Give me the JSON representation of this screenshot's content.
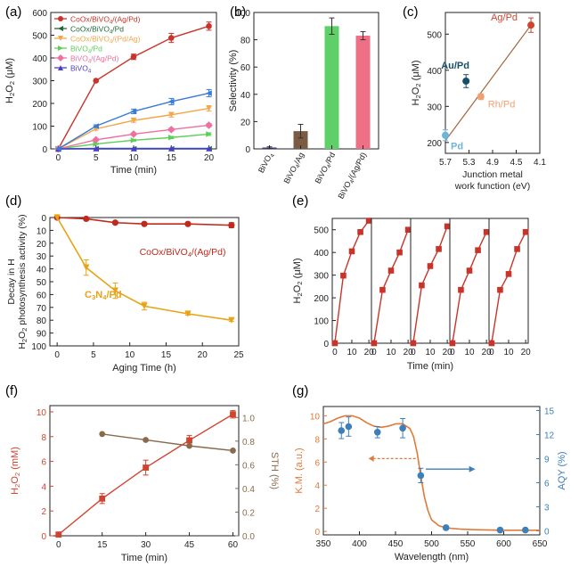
{
  "panel_labels": [
    "(a)",
    "(b)",
    "(c)",
    "(d)",
    "(e)",
    "(f)",
    "(g)"
  ],
  "chart_data": [
    {
      "id": "a",
      "type": "line",
      "ylabel": "H2O2 (μM)",
      "xlabel": "Time (min)",
      "xlim": [
        -1,
        21
      ],
      "ylim": [
        0,
        600
      ],
      "xticks": [
        0,
        5,
        10,
        15,
        20
      ],
      "yticks": [
        0,
        100,
        200,
        300,
        400,
        500,
        600
      ],
      "x": [
        0,
        5,
        10,
        15,
        20
      ],
      "legend": "top-left",
      "series": [
        {
          "name": "CoOx/BiVO4/(Ag/Pd)",
          "color": "#c8342a",
          "marker": "circle",
          "values": [
            0,
            300,
            405,
            488,
            540
          ],
          "errors": [
            0,
            0,
            12,
            20,
            18
          ]
        },
        {
          "name": "CoOx/BiVO4/Pd",
          "color": "#1f6a3a",
          "marker": "tri-left",
          "values": [
            0,
            0,
            0,
            0,
            0
          ],
          "errors": [
            0,
            0,
            0,
            0,
            0
          ]
        },
        {
          "name": "CoOx/BiVO4/(Pd/Ag)",
          "color": "#f3a64b",
          "marker": "tri-down",
          "values": [
            0,
            88,
            125,
            150,
            178
          ],
          "errors": [
            0,
            6,
            8,
            10,
            12
          ]
        },
        {
          "name": "BiVO4/Pd",
          "color": "#5ccf58",
          "marker": "tri-right",
          "values": [
            0,
            22,
            38,
            50,
            65
          ],
          "errors": [
            0,
            3,
            4,
            5,
            6
          ]
        },
        {
          "name": "BiVO4/(Ag/Pd)",
          "color": "#ef6fa0",
          "marker": "diamond",
          "values": [
            0,
            40,
            65,
            85,
            104
          ],
          "errors": [
            0,
            4,
            5,
            6,
            7
          ]
        },
        {
          "name": "BiVO4",
          "color": "#4b3bd1",
          "marker": "tri-up",
          "values": [
            0,
            2,
            2,
            2,
            2
          ],
          "errors": [
            0,
            0,
            0,
            0,
            0
          ]
        },
        {
          "name": "",
          "color": "#3a7bd5",
          "marker": "tri-left",
          "values": [
            0,
            100,
            165,
            208,
            245
          ],
          "errors": [
            0,
            6,
            10,
            14,
            16
          ]
        }
      ]
    },
    {
      "id": "b",
      "type": "bar",
      "ylabel": "Selectivity (%)",
      "ylim": [
        0,
        100
      ],
      "yticks": [
        0,
        20,
        40,
        60,
        80,
        100
      ],
      "categories": [
        "BiVO4",
        "BiVO4/Ag",
        "BiVO4/Pd",
        "BiVO4/(Ag/Pd)"
      ],
      "values": [
        1,
        13,
        90,
        83
      ],
      "errors": [
        0.5,
        5,
        6,
        3
      ],
      "colors": [
        "#3b3a8f",
        "#7b5b43",
        "#5fcf68",
        "#ef6f85"
      ]
    },
    {
      "id": "c",
      "type": "scatter",
      "ylabel": "H2O2 (μM)",
      "xlabel": "Junction metal work function (eV)",
      "xlim": [
        5.7,
        4.1
      ],
      "ylim": [
        170,
        560
      ],
      "xticks": [
        5.7,
        5.3,
        4.9,
        4.5,
        4.1
      ],
      "yticks": [
        200,
        300,
        400,
        500
      ],
      "fit_line": {
        "x": [
          5.7,
          4.25
        ],
        "y": [
          205,
          525
        ],
        "color": "#a0643c"
      },
      "points": [
        {
          "label": "Ag/Pd",
          "x": 4.25,
          "y": 525,
          "err": 20,
          "color": "#d0442f"
        },
        {
          "label": "Au/Pd",
          "x": 5.35,
          "y": 370,
          "err": 18,
          "color": "#174e6a"
        },
        {
          "label": "Rh/Pd",
          "x": 5.1,
          "y": 327,
          "err": 8,
          "color": "#f0a070"
        },
        {
          "label": "Pd",
          "x": 5.7,
          "y": 220,
          "err": 15,
          "color": "#6cb4d8"
        }
      ]
    },
    {
      "id": "d",
      "type": "line",
      "ylabel": "Decay in H2O2 photosynthesis activity (%)",
      "xlabel": "Aging Time (h)",
      "xlim": [
        -1,
        25
      ],
      "ylim": [
        100,
        0
      ],
      "xticks": [
        0,
        5,
        10,
        15,
        20,
        25
      ],
      "yticks": [
        0,
        10,
        20,
        30,
        40,
        50,
        60,
        70,
        80,
        90,
        100
      ],
      "series": [
        {
          "name": "CoOx/BiVO4/(Ag/Pd)",
          "color": "#c02a1d",
          "marker": "circle",
          "x": [
            0,
            4,
            8,
            12,
            18,
            24
          ],
          "values": [
            0,
            1,
            4,
            5,
            5,
            6
          ],
          "errors": [
            0,
            1,
            1,
            1,
            1,
            2
          ]
        },
        {
          "name": "C3N4/Pd",
          "color": "#e8a317",
          "marker": "triangle-down",
          "x": [
            0,
            4,
            8,
            12,
            18,
            24
          ],
          "values": [
            0,
            39,
            57,
            69,
            75,
            80
          ],
          "errors": [
            0,
            6,
            6,
            3,
            1,
            1
          ]
        }
      ]
    },
    {
      "id": "e",
      "type": "line",
      "ylabel": "H2O2 (μM)",
      "xlabel": "Time (min)",
      "ylim": [
        0,
        550
      ],
      "yticks": [
        0,
        100,
        200,
        300,
        400,
        500
      ],
      "xticks": [
        0,
        10,
        20
      ],
      "cycles": [
        {
          "x": [
            0,
            5,
            10,
            15,
            20
          ],
          "values": [
            0,
            298,
            405,
            490,
            540
          ]
        },
        {
          "x": [
            0,
            5,
            10,
            15,
            20
          ],
          "values": [
            0,
            235,
            320,
            400,
            500
          ]
        },
        {
          "x": [
            0,
            5,
            10,
            15,
            20
          ],
          "values": [
            0,
            255,
            340,
            415,
            515
          ]
        },
        {
          "x": [
            0,
            5,
            10,
            15,
            20
          ],
          "values": [
            0,
            235,
            320,
            410,
            490
          ]
        },
        {
          "x": [
            0,
            5,
            10,
            15,
            20
          ],
          "values": [
            0,
            235,
            305,
            415,
            490
          ]
        }
      ],
      "color": "#c8342a"
    },
    {
      "id": "f",
      "type": "line",
      "ylabel": "H2O2 (mM)",
      "y2label": "STH (%)",
      "xlabel": "Time (min)",
      "xlim": [
        -3,
        62
      ],
      "ylim": [
        0,
        10.5
      ],
      "y2lim": [
        0,
        1.1
      ],
      "xticks": [
        0,
        15,
        30,
        45,
        60
      ],
      "yticks": [
        0,
        2,
        4,
        6,
        8,
        10
      ],
      "y2ticks": [
        0.0,
        0.2,
        0.4,
        0.6,
        0.8,
        1.0
      ],
      "series": [
        {
          "name": "H2O2",
          "axis": "left",
          "color": "#d0442f",
          "marker": "square",
          "x": [
            0,
            15,
            30,
            45,
            60
          ],
          "values": [
            0.1,
            3.0,
            5.5,
            7.7,
            9.8
          ],
          "errors": [
            0,
            0.4,
            0.6,
            0.4,
            0.3
          ]
        },
        {
          "name": "STH",
          "axis": "right",
          "color": "#8a6a4c",
          "marker": "circle",
          "x": [
            15,
            30,
            45,
            60
          ],
          "values": [
            0.86,
            0.81,
            0.76,
            0.72
          ],
          "errors": [
            0,
            0,
            0,
            0
          ]
        }
      ]
    },
    {
      "id": "g",
      "type": "line",
      "ylabel": "K.M. (a.u.)",
      "y2label": "AQY (%)",
      "xlabel": "Wavelength (nm)",
      "xlim": [
        350,
        650
      ],
      "ylim": [
        -0.3,
        10.8
      ],
      "y2lim": [
        -0.5,
        15.5
      ],
      "xticks": [
        350,
        400,
        450,
        500,
        550,
        600,
        650
      ],
      "yticks": [
        0,
        2,
        4,
        6,
        8,
        10
      ],
      "y2ticks": [
        0,
        3,
        6,
        9,
        12,
        15
      ],
      "km_curve": {
        "color": "#e07a3a",
        "x": [
          350,
          360,
          370,
          380,
          390,
          400,
          410,
          420,
          430,
          440,
          450,
          460,
          470,
          475,
          480,
          485,
          490,
          495,
          500,
          510,
          520,
          540,
          560,
          600,
          650
        ],
        "values": [
          9.3,
          9.5,
          9.8,
          10.0,
          10.0,
          9.8,
          9.4,
          9.1,
          9.0,
          9.1,
          9.3,
          9.3,
          8.9,
          8.2,
          6.8,
          4.8,
          3.0,
          1.8,
          1.0,
          0.5,
          0.3,
          0.2,
          0.15,
          0.1,
          0.1
        ]
      },
      "aqy_points": {
        "color": "#3d7fb8",
        "x": [
          375,
          385,
          425,
          460,
          485,
          520,
          595,
          630
        ],
        "values": [
          12.5,
          13.0,
          12.3,
          12.8,
          6.9,
          0.4,
          0.1,
          0.1
        ],
        "errors": [
          1.0,
          1.2,
          0.7,
          1.2,
          0.9,
          0,
          0,
          0
        ]
      },
      "arrows": [
        {
          "direction": "left",
          "color": "#e07a3a"
        },
        {
          "direction": "right",
          "color": "#3d7fb8"
        }
      ]
    }
  ]
}
